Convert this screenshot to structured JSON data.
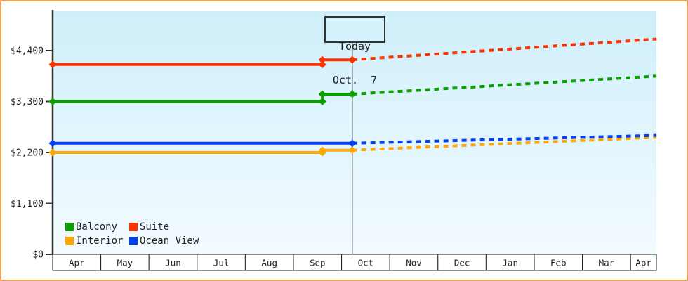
{
  "chart_data": {
    "type": "line",
    "title": "",
    "y_axis": {
      "tick_values": [
        0,
        1100,
        2200,
        3300,
        4400
      ],
      "tick_labels": [
        "$0",
        "$1,100",
        "$2,200",
        "$3,300",
        "$4,400"
      ],
      "ylim": [
        0,
        5250
      ],
      "grid": false
    },
    "x_axis": {
      "months": [
        "Apr",
        "May",
        "Jun",
        "Jul",
        "Aug",
        "Sep",
        "Oct",
        "Nov",
        "Dec",
        "Jan",
        "Feb",
        "Mar",
        "Apr"
      ]
    },
    "today_marker": {
      "line1": "Today",
      "line2": "Oct.  7",
      "month_pos": 6.22
    },
    "series": [
      {
        "id": "interior",
        "name": "Interior",
        "color": "#FFA805",
        "solid": [
          [
            0,
            2200
          ],
          [
            5.6,
            2200
          ],
          [
            5.6,
            2250
          ],
          [
            6.22,
            2250
          ]
        ],
        "dashed": [
          [
            6.22,
            2250
          ],
          [
            12.54,
            2530
          ]
        ],
        "markers": [
          [
            0,
            2200
          ],
          [
            5.6,
            2200
          ],
          [
            5.6,
            2250
          ],
          [
            6.22,
            2250
          ]
        ]
      },
      {
        "id": "ocean-view",
        "name": "Ocean View",
        "color": "#0440F0",
        "solid": [
          [
            0,
            2400
          ],
          [
            6.22,
            2400
          ]
        ],
        "dashed": [
          [
            6.22,
            2400
          ],
          [
            12.54,
            2570
          ]
        ],
        "markers": [
          [
            0,
            2400
          ],
          [
            6.22,
            2400
          ]
        ]
      },
      {
        "id": "balcony",
        "name": "Balcony",
        "color": "#0AA000",
        "solid": [
          [
            0,
            3300
          ],
          [
            5.6,
            3300
          ],
          [
            5.6,
            3460
          ],
          [
            6.22,
            3460
          ]
        ],
        "dashed": [
          [
            6.22,
            3460
          ],
          [
            12.54,
            3850
          ]
        ],
        "markers": [
          [
            0,
            3300
          ],
          [
            5.6,
            3300
          ],
          [
            5.6,
            3460
          ],
          [
            6.22,
            3460
          ]
        ]
      },
      {
        "id": "suite",
        "name": "Suite",
        "color": "#FA3300",
        "solid": [
          [
            0,
            4100
          ],
          [
            5.6,
            4100
          ],
          [
            5.6,
            4200
          ],
          [
            6.22,
            4200
          ]
        ],
        "dashed": [
          [
            6.22,
            4200
          ],
          [
            12.54,
            4650
          ]
        ],
        "markers": [
          [
            0,
            4100
          ],
          [
            5.6,
            4100
          ],
          [
            5.6,
            4200
          ],
          [
            6.22,
            4200
          ]
        ]
      }
    ],
    "legend": {
      "position": "bottom-left",
      "items": [
        {
          "id": "balcony",
          "label": "Balcony",
          "color": "#0AA000"
        },
        {
          "id": "suite",
          "label": "Suite",
          "color": "#FA3300"
        },
        {
          "id": "interior",
          "label": "Interior",
          "color": "#FFA805"
        },
        {
          "id": "ocean-view",
          "label": "Ocean View",
          "color": "#0440F0"
        }
      ]
    },
    "colors": {
      "plot_bg_top": "#CFEFFA",
      "plot_bg_bottom": "#F3FBFF",
      "frame_border": "#E9A55B",
      "axis": "#333333",
      "today_box_bg": "#D6F2FC"
    }
  }
}
